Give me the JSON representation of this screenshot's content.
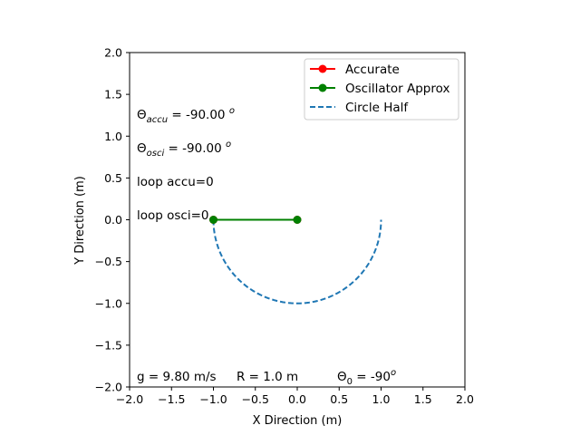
{
  "chart_data": {
    "type": "line",
    "xlabel": "X Direction (m)",
    "ylabel": "Y Direction (m)",
    "xlim": [
      -2.0,
      2.0
    ],
    "ylim": [
      -2.0,
      2.0
    ],
    "xticks": [
      -2.0,
      -1.5,
      -1.0,
      -0.5,
      0.0,
      0.5,
      1.0,
      1.5,
      2.0
    ],
    "yticks": [
      -2.0,
      -1.5,
      -1.0,
      -0.5,
      0.0,
      0.5,
      1.0,
      1.5,
      2.0
    ],
    "xtick_labels": [
      "−2.0",
      "−1.5",
      "−1.0",
      "−0.5",
      "0.0",
      "0.5",
      "1.0",
      "1.5",
      "2.0"
    ],
    "ytick_labels": [
      "−2.0",
      "−1.5",
      "−1.0",
      "−0.5",
      "0.0",
      "0.5",
      "1.0",
      "1.5",
      "2.0"
    ],
    "grid": false,
    "legend_location": "upper right",
    "series": [
      {
        "name": "Accurate",
        "color": "#ff0000",
        "style": "solid-marker",
        "x": [
          0.0,
          -1.0
        ],
        "y": [
          0.0,
          0.0
        ]
      },
      {
        "name": "Oscillator Approx",
        "color": "#008000",
        "style": "solid-marker",
        "x": [
          0.0,
          -1.0
        ],
        "y": [
          0.0,
          0.0
        ]
      },
      {
        "name": "Circle Half",
        "color": "#1f77b4",
        "style": "dashed",
        "center": [
          0.0,
          0.0
        ],
        "radius": 1.0,
        "theta_deg_range": [
          180,
          360
        ]
      }
    ],
    "annotations": {
      "theta_accu_sym": "Θ",
      "theta_accu_sub": "accu",
      "theta_accu_val": " = -90.00 ",
      "theta_accu_sup": "o",
      "theta_osci_sym": "Θ",
      "theta_osci_sub": "osci",
      "theta_osci_val": " = -90.00 ",
      "theta_osci_sup": "o",
      "loop_accu": "loop accu=0",
      "loop_osci": "loop osci=0",
      "gravity": "g = 9.80 m/s",
      "radius": "R = 1.0 m",
      "theta0_sym": "Θ",
      "theta0_sub": "0",
      "theta0_val": " = -90",
      "theta0_sup": "o"
    }
  }
}
